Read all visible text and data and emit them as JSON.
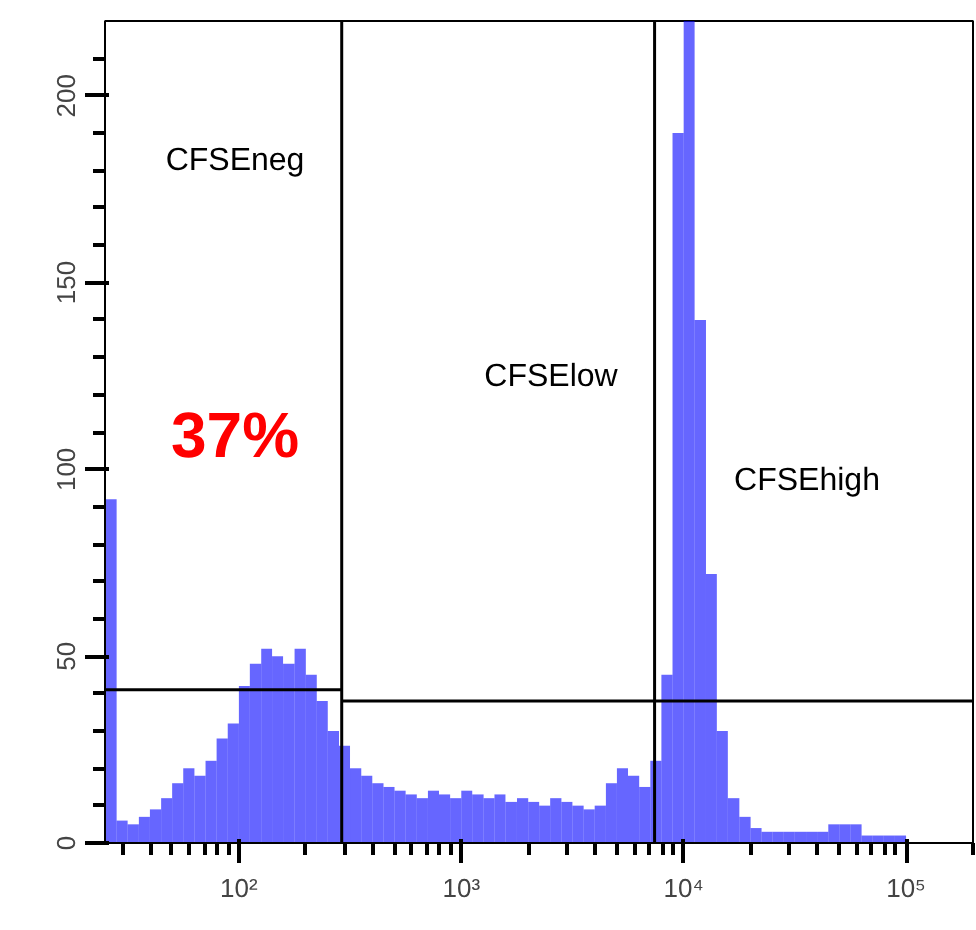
{
  "chart_data": {
    "type": "histogram",
    "log": "x",
    "xlim": [
      25,
      200000
    ],
    "ylim": [
      0,
      220
    ],
    "xticks": [
      {
        "value": 30,
        "label": null
      },
      {
        "value": 40,
        "label": null
      },
      {
        "value": 50,
        "label": null
      },
      {
        "value": 60,
        "label": null
      },
      {
        "value": 70,
        "label": null
      },
      {
        "value": 80,
        "label": null
      },
      {
        "value": 90,
        "label": null
      },
      {
        "value": 100,
        "label": "10²"
      },
      {
        "value": 200,
        "label": null
      },
      {
        "value": 300,
        "label": null
      },
      {
        "value": 400,
        "label": null
      },
      {
        "value": 500,
        "label": null
      },
      {
        "value": 600,
        "label": null
      },
      {
        "value": 700,
        "label": null
      },
      {
        "value": 800,
        "label": null
      },
      {
        "value": 900,
        "label": null
      },
      {
        "value": 1000,
        "label": "10³"
      },
      {
        "value": 2000,
        "label": null
      },
      {
        "value": 3000,
        "label": null
      },
      {
        "value": 4000,
        "label": null
      },
      {
        "value": 5000,
        "label": null
      },
      {
        "value": 6000,
        "label": null
      },
      {
        "value": 7000,
        "label": null
      },
      {
        "value": 8000,
        "label": null
      },
      {
        "value": 9000,
        "label": null
      },
      {
        "value": 10000,
        "label": "10⁴"
      },
      {
        "value": 20000,
        "label": null
      },
      {
        "value": 30000,
        "label": null
      },
      {
        "value": 40000,
        "label": null
      },
      {
        "value": 50000,
        "label": null
      },
      {
        "value": 60000,
        "label": null
      },
      {
        "value": 70000,
        "label": null
      },
      {
        "value": 80000,
        "label": null
      },
      {
        "value": 90000,
        "label": null
      },
      {
        "value": 100000,
        "label": "10⁵"
      },
      {
        "value": 200000,
        "label": null
      }
    ],
    "yticks": [
      0,
      {
        "value": 10,
        "label": null
      },
      {
        "value": 20,
        "label": null
      },
      {
        "value": 30,
        "label": null
      },
      {
        "value": 40,
        "label": null
      },
      50,
      {
        "value": 60,
        "label": null
      },
      {
        "value": 70,
        "label": null
      },
      {
        "value": 80,
        "label": null
      },
      {
        "value": 90,
        "label": null
      },
      100,
      {
        "value": 110,
        "label": null
      },
      {
        "value": 120,
        "label": null
      },
      {
        "value": 130,
        "label": null
      },
      {
        "value": 140,
        "label": null
      },
      150,
      {
        "value": 160,
        "label": null
      },
      {
        "value": 170,
        "label": null
      },
      {
        "value": 180,
        "label": null
      },
      {
        "value": 190,
        "label": null
      },
      200,
      {
        "value": 210,
        "label": null
      }
    ],
    "grid": false,
    "bins": [
      25.1,
      28.2,
      31.6,
      35.5,
      39.8,
      44.7,
      50.1,
      56.2,
      63.1,
      70.8,
      79.4,
      89.1,
      100,
      112,
      126,
      141,
      158,
      178,
      200,
      224,
      251,
      282,
      316,
      355,
      398,
      447,
      501,
      562,
      631,
      708,
      794,
      891,
      1000,
      1120,
      1260,
      1410,
      1580,
      1780,
      2000,
      2240,
      2510,
      2820,
      3160,
      3550,
      3980,
      4470,
      5010,
      5620,
      6310,
      7080,
      7940,
      8910,
      10000,
      11200,
      12600,
      14100,
      15800,
      17800,
      20000,
      22400,
      25100,
      28200,
      31600,
      35500,
      39800,
      44700,
      50100,
      56200,
      63100,
      70800,
      79400,
      89100,
      100000,
      112000
    ],
    "values": [
      92,
      6,
      5,
      7,
      9,
      12,
      16,
      20,
      18,
      22,
      28,
      32,
      42,
      48,
      52,
      50,
      48,
      52,
      45,
      38,
      30,
      26,
      20,
      18,
      16,
      15,
      14,
      13,
      12,
      14,
      13,
      12,
      14,
      13,
      12,
      13,
      11,
      12,
      11,
      10,
      12,
      11,
      10,
      9,
      10,
      16,
      20,
      18,
      15,
      22,
      45,
      190,
      220,
      140,
      72,
      30,
      12,
      7,
      4,
      3,
      3,
      3,
      3,
      3,
      3,
      5,
      5,
      5,
      2,
      2,
      2,
      2,
      0
    ],
    "color": "#0000ff",
    "series": [
      {
        "type": "line",
        "color": "#000000",
        "x": [
          25.1,
          290
        ],
        "values": [
          41,
          41
        ]
      },
      {
        "type": "line",
        "color": "#000000",
        "x": [
          290,
          200000
        ],
        "values": [
          38,
          38
        ]
      }
    ],
    "ref_lines": [
      {
        "axis": "x",
        "value": 290,
        "color": "#000000"
      },
      {
        "axis": "x",
        "value": 7400,
        "color": "#000000"
      }
    ],
    "annotations": [
      "CFSEneg",
      "CFSElow",
      "CFSEhigh",
      "37%"
    ]
  }
}
